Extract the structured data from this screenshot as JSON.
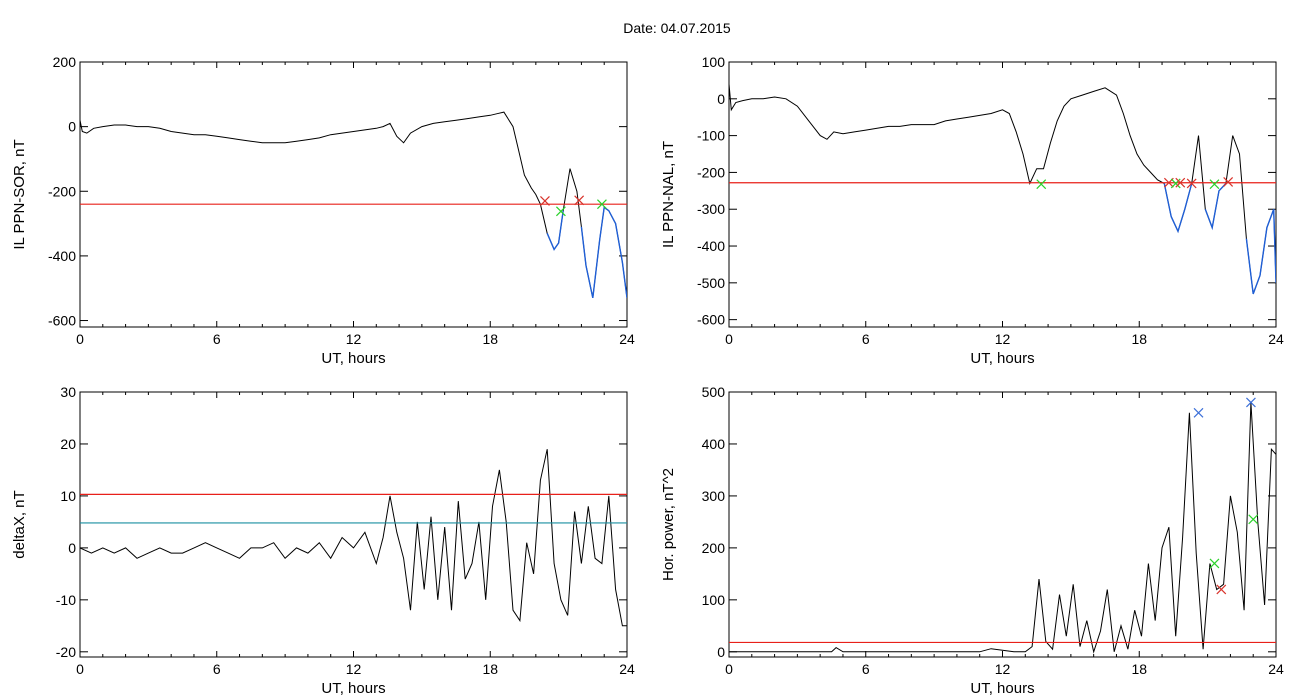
{
  "title": "Date:  04.07.2015",
  "colors": {
    "series": "#000000",
    "threshold_red": "#e8201a",
    "threshold_teal": "#1a8fa0",
    "segment_blue": "#1f5fd6",
    "marker_red": "#d8322a",
    "marker_green": "#2bd12b",
    "marker_blue": "#3b6fd8"
  },
  "chart_data": [
    {
      "type": "line",
      "id": "sor",
      "xlabel": "UT, hours",
      "ylabel": "IL PPN-SOR, nT",
      "xlim": [
        0,
        24
      ],
      "ylim": [
        -620,
        200
      ],
      "xticks": [
        "0",
        "6",
        "12",
        "18",
        "24"
      ],
      "yticks": [
        "200",
        "0",
        "-200",
        "-400",
        "-600"
      ],
      "thresholds": [
        {
          "y": -240,
          "color": "red"
        }
      ],
      "series": [
        {
          "x": [
            0,
            0.1,
            0.3,
            0.6,
            1,
            1.5,
            2,
            2.5,
            3,
            3.5,
            4,
            4.5,
            5,
            5.5,
            6,
            6.5,
            7,
            7.5,
            8,
            8.5,
            9,
            9.5,
            10,
            10.5,
            11,
            11.5,
            12,
            12.5,
            13,
            13.3,
            13.6,
            13.9,
            14.2,
            14.5,
            15,
            15.5,
            16,
            16.5,
            17,
            17.5,
            18,
            18.3,
            18.6,
            19,
            19.2,
            19.5,
            19.8,
            20,
            20.2,
            20.5,
            20.8,
            21,
            21.2,
            21.5,
            21.8,
            22,
            22.2,
            22.5,
            22.8,
            23,
            23.2,
            23.5,
            23.8,
            24
          ],
          "y": [
            20,
            -15,
            -20,
            -5,
            0,
            5,
            5,
            0,
            0,
            -5,
            -15,
            -20,
            -25,
            -25,
            -30,
            -35,
            -40,
            -45,
            -50,
            -50,
            -50,
            -45,
            -40,
            -35,
            -25,
            -20,
            -15,
            -10,
            -5,
            0,
            10,
            -30,
            -50,
            -20,
            0,
            10,
            15,
            20,
            25,
            30,
            35,
            40,
            45,
            0,
            -60,
            -150,
            -190,
            -210,
            -240,
            -330,
            -380,
            -360,
            -260,
            -130,
            -200,
            -310,
            -430,
            -530,
            -350,
            -250,
            -260,
            -300,
            -420,
            -530
          ]
        }
      ],
      "markers": [
        {
          "x": 20.4,
          "y": -230,
          "color": "red"
        },
        {
          "x": 21.1,
          "y": -262,
          "color": "green"
        },
        {
          "x": 21.9,
          "y": -228,
          "color": "red"
        },
        {
          "x": 22.9,
          "y": -240,
          "color": "green"
        }
      ]
    },
    {
      "type": "line",
      "id": "nal",
      "xlabel": "UT, hours",
      "ylabel": "IL PPN-NAL, nT",
      "xlim": [
        0,
        24
      ],
      "ylim": [
        -620,
        100
      ],
      "xticks": [
        "0",
        "6",
        "12",
        "18",
        "24"
      ],
      "yticks": [
        "100",
        "0",
        "-100",
        "-200",
        "-300",
        "-400",
        "-500",
        "-600"
      ],
      "thresholds": [
        {
          "y": -228,
          "color": "red"
        }
      ],
      "series": [
        {
          "x": [
            0,
            0.1,
            0.3,
            0.6,
            1,
            1.5,
            2,
            2.5,
            3,
            3.5,
            4,
            4.3,
            4.6,
            5,
            5.5,
            6,
            6.5,
            7,
            7.5,
            8,
            8.5,
            9,
            9.5,
            10,
            10.5,
            11,
            11.5,
            12,
            12.3,
            12.6,
            12.9,
            13.2,
            13.5,
            13.8,
            14.1,
            14.4,
            14.7,
            15,
            15.5,
            16,
            16.5,
            17,
            17.3,
            17.6,
            17.9,
            18.2,
            18.5,
            18.8,
            19.1,
            19.4,
            19.7,
            20,
            20.3,
            20.6,
            20.9,
            21.2,
            21.5,
            21.8,
            22.1,
            22.4,
            22.7,
            23,
            23.3,
            23.6,
            23.9,
            24
          ],
          "y": [
            40,
            -30,
            -10,
            -5,
            0,
            0,
            5,
            0,
            -20,
            -60,
            -100,
            -110,
            -90,
            -95,
            -90,
            -85,
            -80,
            -75,
            -75,
            -70,
            -70,
            -70,
            -60,
            -55,
            -50,
            -45,
            -40,
            -30,
            -40,
            -90,
            -150,
            -230,
            -190,
            -190,
            -120,
            -60,
            -20,
            0,
            10,
            20,
            30,
            10,
            -40,
            -100,
            -150,
            -180,
            -200,
            -220,
            -230,
            -320,
            -360,
            -300,
            -230,
            -100,
            -300,
            -350,
            -250,
            -230,
            -100,
            -150,
            -380,
            -530,
            -480,
            -350,
            -300,
            -500
          ]
        }
      ],
      "markers": [
        {
          "x": 13.7,
          "y": -232,
          "color": "green"
        },
        {
          "x": 19.3,
          "y": -228,
          "color": "red"
        },
        {
          "x": 19.6,
          "y": -230,
          "color": "green"
        },
        {
          "x": 19.8,
          "y": -228,
          "color": "red"
        },
        {
          "x": 20.3,
          "y": -230,
          "color": "red"
        },
        {
          "x": 21.3,
          "y": -232,
          "color": "green"
        },
        {
          "x": 21.9,
          "y": -226,
          "color": "red"
        }
      ]
    },
    {
      "type": "line",
      "id": "deltax",
      "xlabel": "UT, hours",
      "ylabel": "deltaX, nT",
      "xlim": [
        0,
        24
      ],
      "ylim": [
        -21,
        30
      ],
      "xticks": [
        "0",
        "6",
        "12",
        "18",
        "24"
      ],
      "yticks": [
        "30",
        "20",
        "10",
        "0",
        "-10",
        "-20"
      ],
      "thresholds": [
        {
          "y": 10.3,
          "color": "red"
        },
        {
          "y": 4.8,
          "color": "teal"
        }
      ],
      "series": [
        {
          "x": [
            0,
            0.5,
            1,
            1.5,
            2,
            2.5,
            3,
            3.5,
            4,
            4.5,
            5,
            5.5,
            6,
            6.5,
            7,
            7.5,
            8,
            8.5,
            9,
            9.5,
            10,
            10.5,
            11,
            11.5,
            12,
            12.5,
            13,
            13.3,
            13.6,
            13.9,
            14.2,
            14.5,
            14.8,
            15.1,
            15.4,
            15.7,
            16,
            16.3,
            16.6,
            16.9,
            17.2,
            17.5,
            17.8,
            18.1,
            18.4,
            18.7,
            19,
            19.3,
            19.6,
            19.9,
            20.2,
            20.5,
            20.8,
            21.1,
            21.4,
            21.7,
            22,
            22.3,
            22.6,
            22.9,
            23.2,
            23.5,
            23.8,
            24
          ],
          "y": [
            0,
            -1,
            0,
            -1,
            0,
            -2,
            -1,
            0,
            -1,
            -1,
            0,
            1,
            0,
            -1,
            -2,
            0,
            0,
            1,
            -2,
            0,
            -1,
            1,
            -2,
            2,
            0,
            3,
            -3,
            2,
            10,
            3,
            -2,
            -12,
            5,
            -8,
            6,
            -10,
            4,
            -12,
            9,
            -6,
            -3,
            5,
            -10,
            8,
            15,
            5,
            -12,
            -14,
            1,
            -5,
            13,
            19,
            -3,
            -10,
            -13,
            7,
            -3,
            8,
            -2,
            -3,
            10,
            -8,
            -15,
            -15
          ]
        }
      ],
      "markers": []
    },
    {
      "type": "line",
      "id": "horpower",
      "xlabel": "UT, hours",
      "ylabel": "Hor. power, nT^2",
      "xlim": [
        0,
        24
      ],
      "ylim": [
        -10,
        500
      ],
      "xticks": [
        "0",
        "6",
        "12",
        "18",
        "24"
      ],
      "yticks": [
        "500",
        "400",
        "300",
        "200",
        "100",
        "0"
      ],
      "thresholds": [
        {
          "y": 18,
          "color": "red"
        }
      ],
      "series": [
        {
          "x": [
            0,
            1,
            2,
            3,
            4,
            4.5,
            4.7,
            5,
            6,
            7,
            8,
            9,
            10,
            11,
            11.5,
            12,
            12.5,
            13,
            13.3,
            13.6,
            13.9,
            14.2,
            14.5,
            14.8,
            15.1,
            15.4,
            15.7,
            16,
            16.3,
            16.6,
            16.9,
            17.2,
            17.5,
            17.8,
            18.1,
            18.4,
            18.7,
            19,
            19.3,
            19.6,
            19.9,
            20.2,
            20.5,
            20.8,
            21.1,
            21.4,
            21.7,
            22,
            22.3,
            22.6,
            22.9,
            23.2,
            23.5,
            23.8,
            24
          ],
          "y": [
            0,
            0,
            0,
            0,
            0,
            0,
            8,
            0,
            0,
            0,
            0,
            0,
            0,
            0,
            6,
            3,
            0,
            0,
            10,
            140,
            20,
            5,
            110,
            30,
            130,
            10,
            60,
            0,
            40,
            120,
            0,
            50,
            5,
            80,
            30,
            170,
            60,
            200,
            240,
            30,
            220,
            460,
            190,
            5,
            170,
            120,
            130,
            300,
            230,
            80,
            480,
            250,
            90,
            390,
            380
          ]
        }
      ],
      "markers": [
        {
          "x": 20.6,
          "y": 460,
          "color": "blue"
        },
        {
          "x": 22.9,
          "y": 480,
          "color": "blue"
        },
        {
          "x": 21.3,
          "y": 170,
          "color": "green"
        },
        {
          "x": 21.6,
          "y": 120,
          "color": "red"
        },
        {
          "x": 23.0,
          "y": 255,
          "color": "green"
        }
      ]
    }
  ]
}
